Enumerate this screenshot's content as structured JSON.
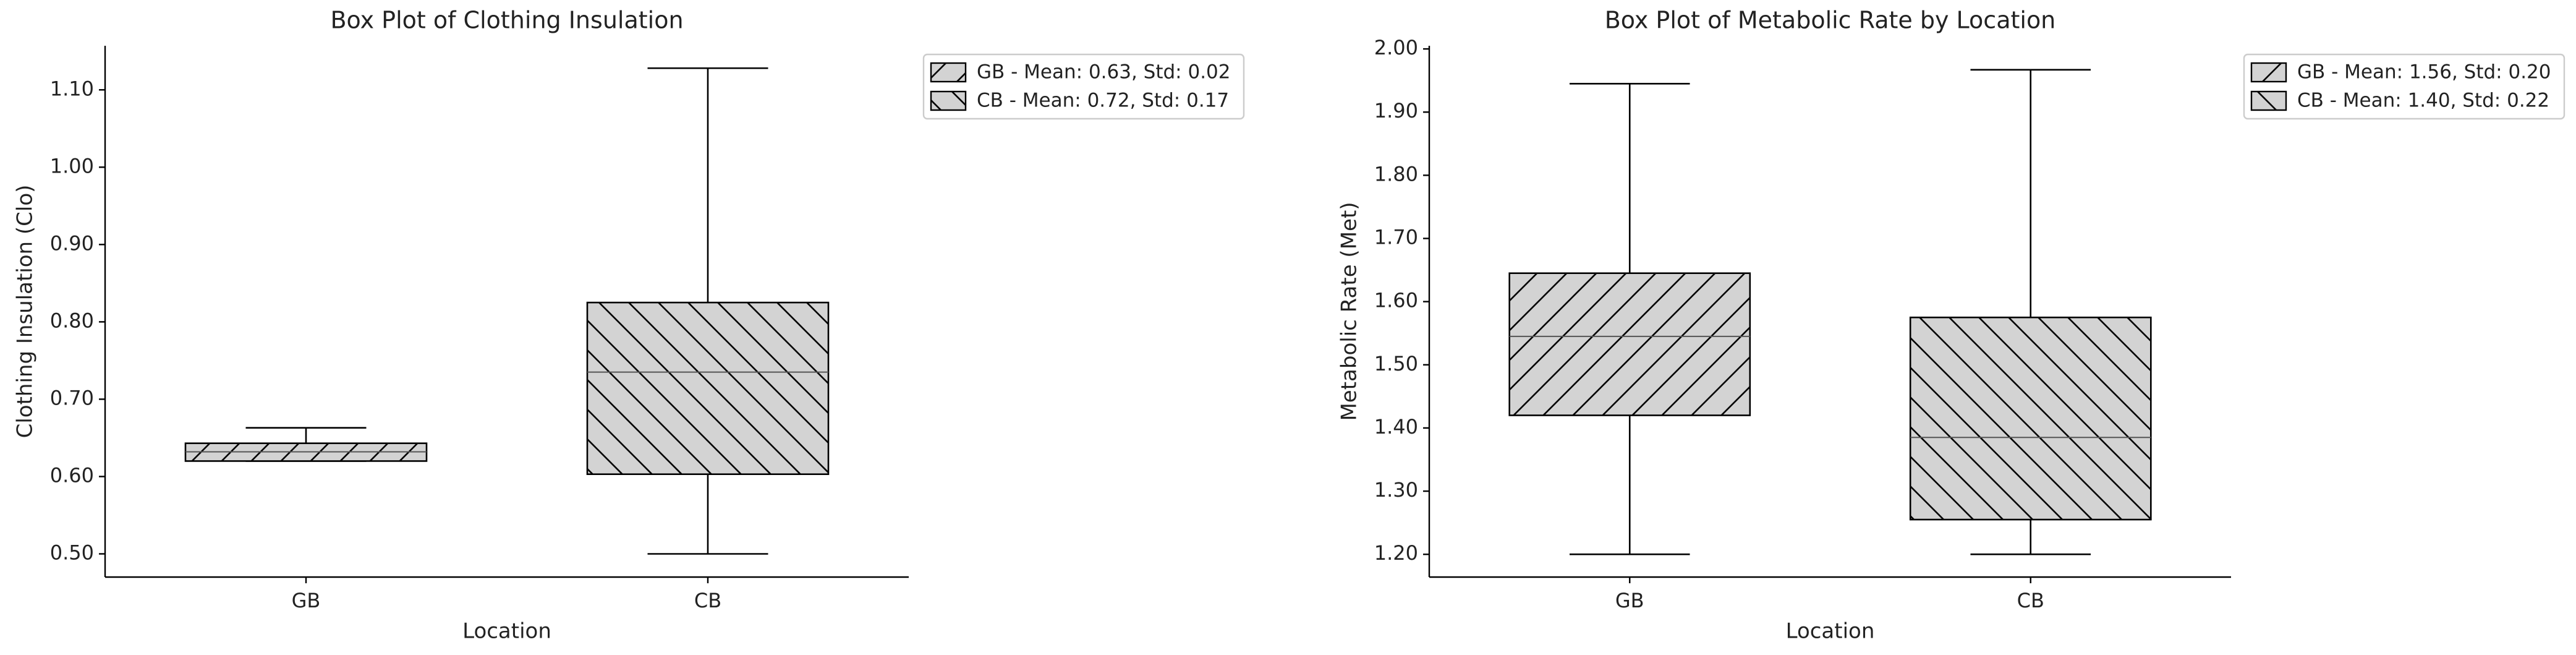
{
  "chart_data": [
    {
      "type": "box",
      "title": "Box Plot of Clothing Insulation",
      "xlabel": "Location",
      "ylabel": "Clothing Insulation (Clo)",
      "categories": [
        "GB",
        "CB"
      ],
      "color": "#d3d3d3",
      "series": [
        {
          "name": "GB - Mean: 0.63, Std: 0.02",
          "hatch": "/",
          "whislo": 0.62,
          "q1": 0.62,
          "med": 0.632,
          "q3": 0.643,
          "whishi": 0.663
        },
        {
          "name": "CB - Mean: 0.72, Std: 0.17",
          "hatch": "\\",
          "whislo": 0.5,
          "q1": 0.603,
          "med": 0.735,
          "q3": 0.825,
          "whishi": 1.128
        }
      ],
      "ylim": [
        0.47,
        1.157
      ],
      "yticks": [
        {
          "value": 0.5,
          "label": "0.50"
        },
        {
          "value": 0.6,
          "label": "0.60"
        },
        {
          "value": 0.7,
          "label": "0.70"
        },
        {
          "value": 0.8,
          "label": "0.80"
        },
        {
          "value": 0.9,
          "label": "0.90"
        },
        {
          "value": 1.0,
          "label": "1.00"
        },
        {
          "value": 1.1,
          "label": "1.10"
        }
      ],
      "legend": "upper right outside"
    },
    {
      "type": "box",
      "title": "Box Plot of Metabolic Rate by Location",
      "xlabel": "Location",
      "ylabel": "Metabolic Rate (Met)",
      "categories": [
        "GB",
        "CB"
      ],
      "color": "#d3d3d3",
      "series": [
        {
          "name": "GB - Mean: 1.56, Std: 0.20",
          "hatch": "/",
          "whislo": 1.2,
          "q1": 1.42,
          "med": 1.545,
          "q3": 1.645,
          "whishi": 1.945
        },
        {
          "name": "CB - Mean: 1.40, Std: 0.22",
          "hatch": "\\",
          "whislo": 1.2,
          "q1": 1.255,
          "med": 1.385,
          "q3": 1.575,
          "whishi": 1.967
        }
      ],
      "ylim": [
        1.164,
        2.005
      ],
      "yticks": [
        {
          "value": 1.2,
          "label": "1.20"
        },
        {
          "value": 1.3,
          "label": "1.30"
        },
        {
          "value": 1.4,
          "label": "1.40"
        },
        {
          "value": 1.5,
          "label": "1.50"
        },
        {
          "value": 1.6,
          "label": "1.60"
        },
        {
          "value": 1.7,
          "label": "1.70"
        },
        {
          "value": 1.8,
          "label": "1.80"
        },
        {
          "value": 1.9,
          "label": "1.90"
        },
        {
          "value": 2.0,
          "label": "2.00"
        }
      ],
      "legend": "upper right outside"
    }
  ]
}
